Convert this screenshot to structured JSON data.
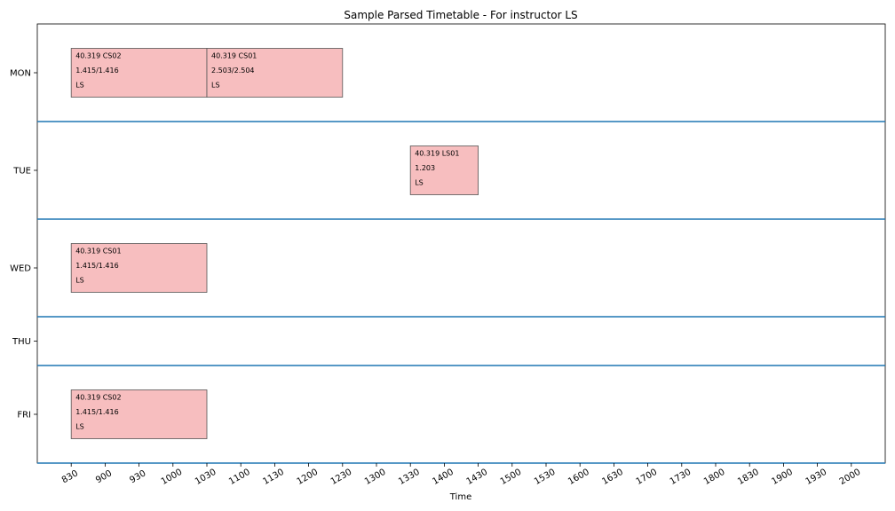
{
  "chart_data": {
    "type": "timetable",
    "title": "Sample Parsed Timetable - For instructor LS",
    "xlabel": "Time",
    "ylabel": "",
    "x_ticks": [
      "830",
      "900",
      "930",
      "1000",
      "1030",
      "1100",
      "1130",
      "1200",
      "1230",
      "1300",
      "1330",
      "1400",
      "1430",
      "1500",
      "1530",
      "1600",
      "1630",
      "1700",
      "1730",
      "1800",
      "1830",
      "1900",
      "1930",
      "2000"
    ],
    "days": [
      "MON",
      "TUE",
      "WED",
      "THU",
      "FRI"
    ],
    "day_weights": [
      2,
      2,
      2,
      1,
      2
    ],
    "x_range": [
      "800",
      "2030"
    ],
    "grid": false,
    "event_fill": "#f7bebf",
    "event_edge": "#555555",
    "separator_color": "#1f77b4",
    "events": [
      {
        "day": "MON",
        "start": "830",
        "end": "1030",
        "lines": [
          "40.319 CS02",
          "1.415/1.416",
          "LS"
        ]
      },
      {
        "day": "MON",
        "start": "1030",
        "end": "1230",
        "lines": [
          "40.319 CS01",
          "2.503/2.504",
          "LS"
        ]
      },
      {
        "day": "TUE",
        "start": "1330",
        "end": "1430",
        "lines": [
          "40.319 LS01",
          "1.203",
          "LS"
        ]
      },
      {
        "day": "WED",
        "start": "830",
        "end": "1030",
        "lines": [
          "40.319 CS01",
          "1.415/1.416",
          "LS"
        ]
      },
      {
        "day": "FRI",
        "start": "830",
        "end": "1030",
        "lines": [
          "40.319 CS02",
          "1.415/1.416",
          "LS"
        ]
      }
    ]
  }
}
